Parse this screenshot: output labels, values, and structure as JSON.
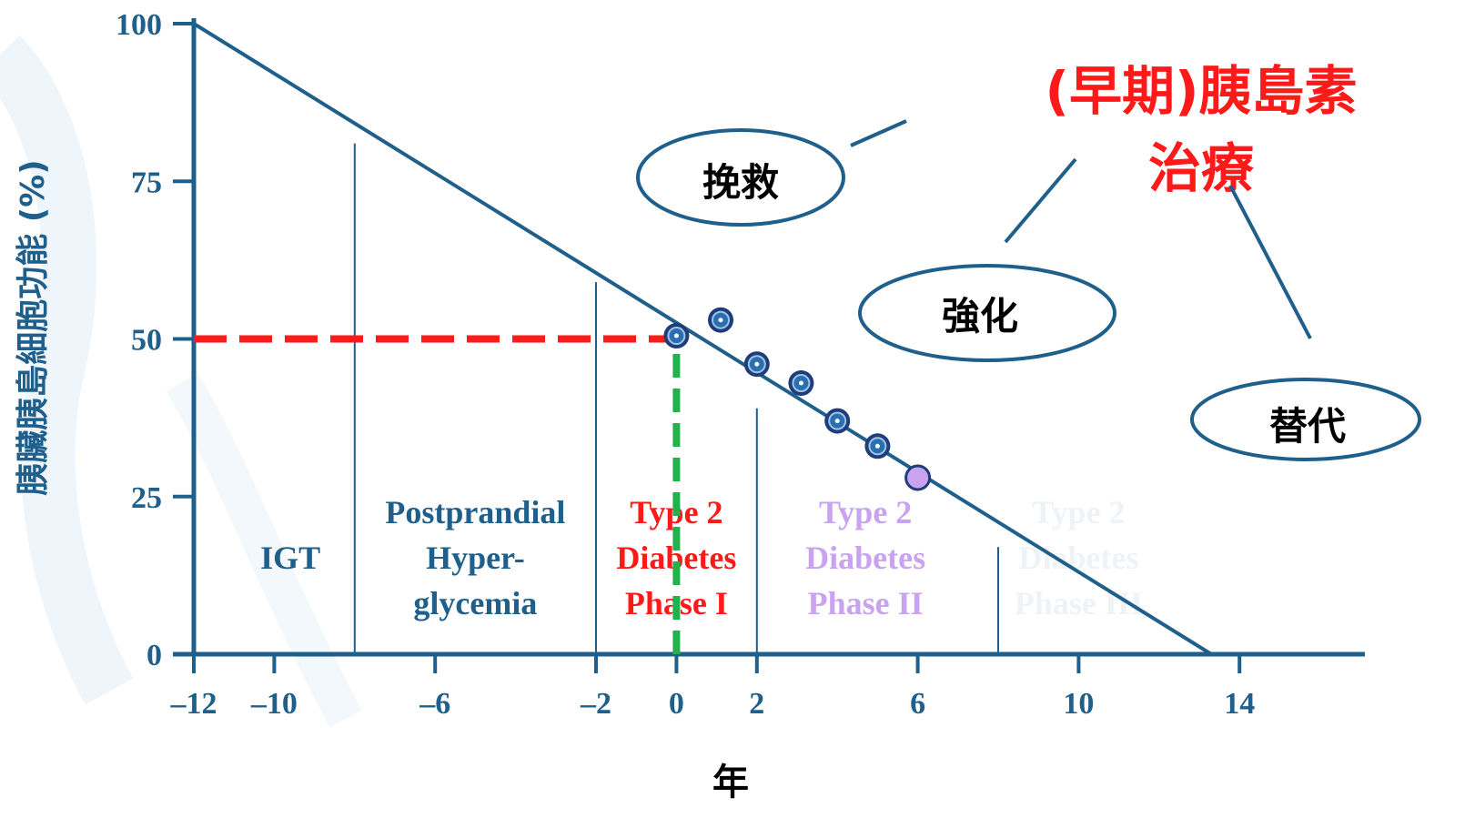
{
  "chart_data": {
    "type": "line",
    "ylabel": "胰臟胰島細胞功能 (%)",
    "xlabel": "年",
    "xlim": [
      -12,
      17
    ],
    "ylim": [
      0,
      100
    ],
    "x_ticks": [
      {
        "value": -12,
        "label": "–12"
      },
      {
        "value": -10,
        "label": "–10"
      },
      {
        "value": -6,
        "label": "–6"
      },
      {
        "value": -2,
        "label": "–2"
      },
      {
        "value": 0,
        "label": "0"
      },
      {
        "value": 2,
        "label": "2"
      },
      {
        "value": 6,
        "label": "6"
      },
      {
        "value": 10,
        "label": "10"
      },
      {
        "value": 14,
        "label": "14"
      }
    ],
    "y_ticks": [
      {
        "value": 0,
        "label": "0"
      },
      {
        "value": 25,
        "label": "25"
      },
      {
        "value": 50,
        "label": "50"
      },
      {
        "value": 75,
        "label": "75"
      },
      {
        "value": 100,
        "label": "100"
      }
    ],
    "series": [
      {
        "x": [
          -12,
          13.3
        ],
        "y": [
          100,
          0
        ],
        "color": "#1f5f8b"
      }
    ],
    "points": [
      {
        "x": 0,
        "y": 50.5
      },
      {
        "x": 1.1,
        "y": 53
      },
      {
        "x": 2,
        "y": 46
      },
      {
        "x": 3.1,
        "y": 43
      },
      {
        "x": 4,
        "y": 37
      },
      {
        "x": 5,
        "y": 33
      },
      {
        "x": 6,
        "y": 28,
        "highlight": true
      }
    ],
    "reference_lines": {
      "horizontal": {
        "y": 50,
        "x_from": -12,
        "x_to": 0,
        "color": "#ff1a1a"
      },
      "vertical": {
        "x": 0,
        "y_from": 0,
        "y_to": 50,
        "color": "#22b14c"
      }
    },
    "phase_dividers": [
      {
        "x": -8,
        "y_top": 81
      },
      {
        "x": -2,
        "y_top": 59
      },
      {
        "x": 2,
        "y_top": 39
      },
      {
        "x": 8,
        "y_top": 17
      }
    ],
    "phases": [
      {
        "lines": [
          "IGT"
        ],
        "x": -9.6,
        "color": "#1f5f8b"
      },
      {
        "lines": [
          "Postprandial",
          "Hyper-",
          "glycemia"
        ],
        "x": -5,
        "color": "#1f5f8b"
      },
      {
        "lines": [
          "Type 2",
          "Diabetes",
          "Phase I"
        ],
        "x": 0,
        "color": "#ff1a1a"
      },
      {
        "lines": [
          "Type 2",
          "Diabetes",
          "Phase II"
        ],
        "x": 4.7,
        "color": "#c9a3f0"
      },
      {
        "lines": [
          "Type 2",
          "Diabetes",
          "Phase III"
        ],
        "x": 10,
        "color": "#eef3f8"
      }
    ],
    "annotations": {
      "title_lines": [
        "(早期)胰島素",
        "治療"
      ],
      "title_color": "#ff1a1a",
      "bubbles": [
        "挽救",
        "強化",
        "替代"
      ]
    }
  },
  "colors": {
    "axis": "#1f5f8b",
    "marker_fill": "#2a6fb0",
    "marker_ring": "#1f3d7a",
    "highlight": "#c9a3f0"
  }
}
